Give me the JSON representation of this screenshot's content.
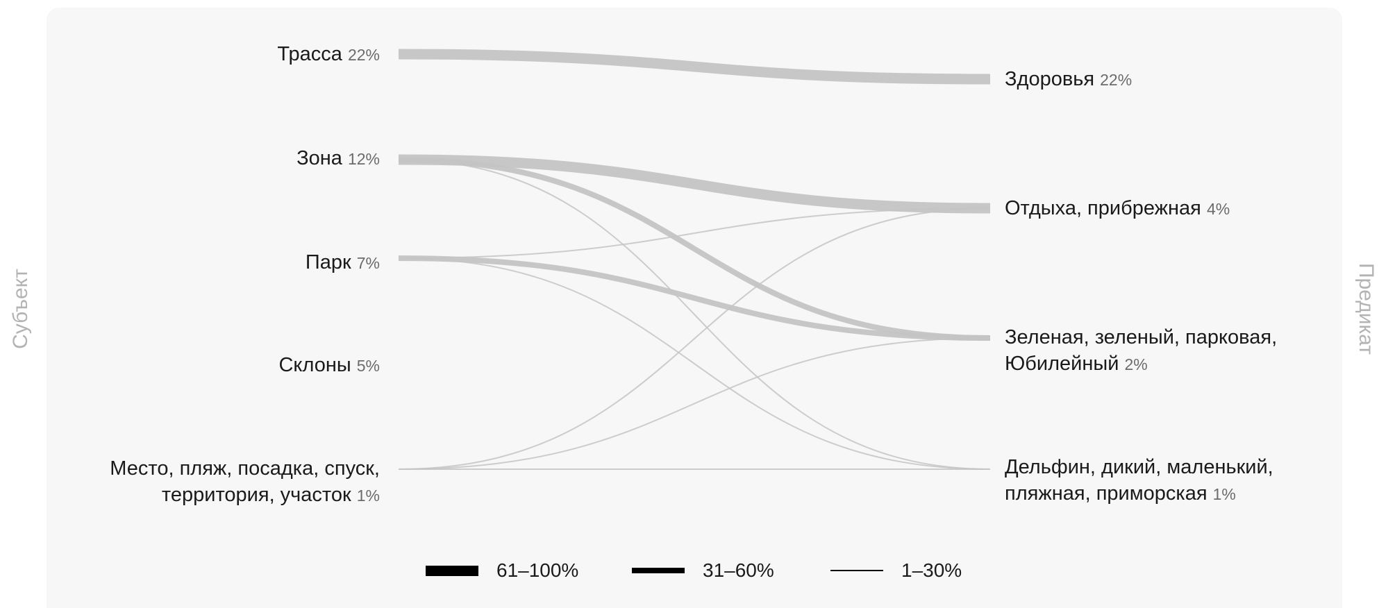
{
  "axis": {
    "left": "Субъект",
    "right": "Предикат"
  },
  "left_nodes": [
    {
      "lines": [
        "Трасса"
      ],
      "pct": "22%"
    },
    {
      "lines": [
        "Зона"
      ],
      "pct": "12%"
    },
    {
      "lines": [
        "Парк"
      ],
      "pct": "7%"
    },
    {
      "lines": [
        "Склоны"
      ],
      "pct": "5%"
    },
    {
      "lines": [
        "Место, пляж, посадка, спуск,",
        "территория, участок"
      ],
      "pct": "1%"
    }
  ],
  "right_nodes": [
    {
      "lines": [
        "Здоровья"
      ],
      "pct": "22%"
    },
    {
      "lines": [
        "Отдыха, прибрежная"
      ],
      "pct": "4%"
    },
    {
      "lines": [
        "Зеленая, зеленый, парковая,",
        "Юбилейный"
      ],
      "pct": "2%"
    },
    {
      "lines": [
        "Дельфин, дикий, маленький,",
        "пляжная, приморская"
      ],
      "pct": "1%"
    }
  ],
  "links": [
    {
      "from": 0,
      "to": 0,
      "band": "61–100%"
    },
    {
      "from": 1,
      "to": 1,
      "band": "61–100%"
    },
    {
      "from": 1,
      "to": 2,
      "band": "31–60%"
    },
    {
      "from": 1,
      "to": 3,
      "band": "1–30%"
    },
    {
      "from": 2,
      "to": 2,
      "band": "31–60%"
    },
    {
      "from": 2,
      "to": 1,
      "band": "1–30%"
    },
    {
      "from": 2,
      "to": 3,
      "band": "1–30%"
    },
    {
      "from": 4,
      "to": 1,
      "band": "1–30%"
    },
    {
      "from": 4,
      "to": 2,
      "band": "1–30%"
    },
    {
      "from": 4,
      "to": 3,
      "band": "1–30%"
    }
  ],
  "legend": [
    {
      "label": "61–100%"
    },
    {
      "label": "31–60%"
    },
    {
      "label": "1–30%"
    }
  ],
  "colors": {
    "link": "#c4c4c4",
    "legend_line": "#000000"
  }
}
